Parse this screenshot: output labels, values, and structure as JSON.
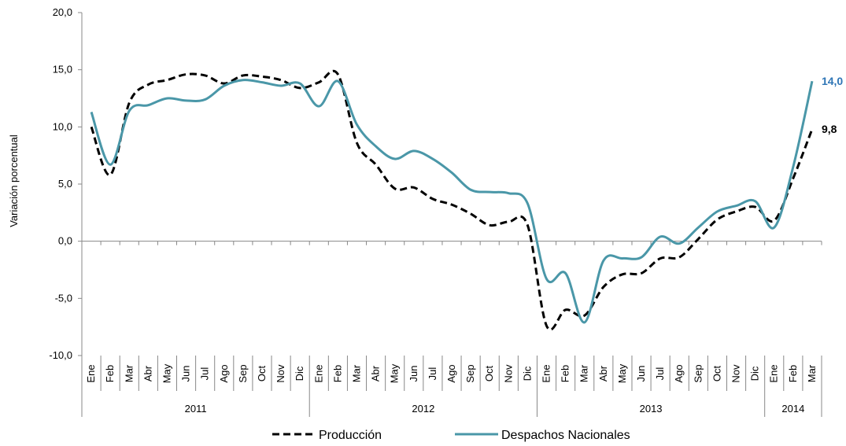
{
  "chart_data": {
    "type": "line",
    "y_label": "Variación porcentual",
    "categories": [
      "Ene",
      "Feb",
      "Mar",
      "Abr",
      "May",
      "Jun",
      "Jul",
      "Ago",
      "Sep",
      "Oct",
      "Nov",
      "Dic",
      "Ene",
      "Feb",
      "Mar",
      "Abr",
      "May",
      "Jun",
      "Jul",
      "Ago",
      "Sep",
      "Oct",
      "Nov",
      "Dic",
      "Ene",
      "Feb",
      "Mar",
      "Abr",
      "May",
      "Jun",
      "Jul",
      "Ago",
      "Sep",
      "Oct",
      "Nov",
      "Dic",
      "Ene",
      "Feb",
      "Mar"
    ],
    "years": [
      "2011",
      "2011",
      "2011",
      "2011",
      "2011",
      "2011",
      "2011",
      "2011",
      "2011",
      "2011",
      "2011",
      "2011",
      "2012",
      "2012",
      "2012",
      "2012",
      "2012",
      "2012",
      "2012",
      "2012",
      "2012",
      "2012",
      "2012",
      "2012",
      "2013",
      "2013",
      "2013",
      "2013",
      "2013",
      "2013",
      "2013",
      "2013",
      "2013",
      "2013",
      "2013",
      "2013",
      "2014",
      "2014",
      "2014"
    ],
    "series": [
      {
        "name": "Producción",
        "color": "#000000",
        "dashed": true,
        "values": [
          10.0,
          5.8,
          12.1,
          13.7,
          14.1,
          14.6,
          14.5,
          13.8,
          14.5,
          14.4,
          14.1,
          13.4,
          13.9,
          14.6,
          8.6,
          6.7,
          4.6,
          4.7,
          3.7,
          3.2,
          2.4,
          1.4,
          1.7,
          1.4,
          -7.4,
          -6.0,
          -6.5,
          -4.0,
          -2.9,
          -2.8,
          -1.5,
          -1.4,
          0.2,
          1.9,
          2.6,
          3.0,
          1.8,
          5.5,
          9.8
        ],
        "value_labels": [
          null,
          null,
          null,
          null,
          null,
          null,
          null,
          null,
          null,
          null,
          null,
          null,
          null,
          null,
          null,
          null,
          null,
          null,
          null,
          null,
          null,
          null,
          null,
          null,
          null,
          null,
          null,
          null,
          null,
          null,
          null,
          null,
          null,
          null,
          null,
          null,
          null,
          null,
          "9,8"
        ],
        "label_color": "#000000"
      },
      {
        "name": "Despachos Nacionales",
        "color": "#4a97a8",
        "dashed": false,
        "values": [
          11.3,
          6.7,
          11.4,
          11.9,
          12.5,
          12.3,
          12.4,
          13.6,
          14.1,
          13.9,
          13.6,
          13.8,
          11.8,
          14.0,
          10.2,
          8.3,
          7.2,
          7.9,
          7.2,
          6.0,
          4.5,
          4.3,
          4.2,
          3.3,
          -3.3,
          -2.8,
          -7.1,
          -1.7,
          -1.5,
          -1.4,
          0.4,
          -0.2,
          1.2,
          2.6,
          3.1,
          3.5,
          1.2,
          6.5,
          14.0
        ],
        "value_labels": [
          null,
          null,
          null,
          null,
          null,
          null,
          null,
          null,
          null,
          null,
          null,
          null,
          null,
          null,
          null,
          null,
          null,
          null,
          null,
          null,
          null,
          null,
          null,
          null,
          null,
          null,
          null,
          null,
          null,
          null,
          null,
          null,
          null,
          null,
          null,
          null,
          null,
          null,
          "14,0"
        ],
        "label_color": "#2e75b6"
      }
    ],
    "ylim": [
      -10,
      20
    ],
    "yticks": [
      {
        "value": -10,
        "label": "-10,0"
      },
      {
        "value": -5,
        "label": "-5,0"
      },
      {
        "value": 0,
        "label": "0,0"
      },
      {
        "value": 5,
        "label": "5,0"
      },
      {
        "value": 10,
        "label": "10,0"
      },
      {
        "value": 15,
        "label": "15,0"
      },
      {
        "value": 20,
        "label": "20,0"
      }
    ],
    "grid": false,
    "legend": "bottom"
  }
}
